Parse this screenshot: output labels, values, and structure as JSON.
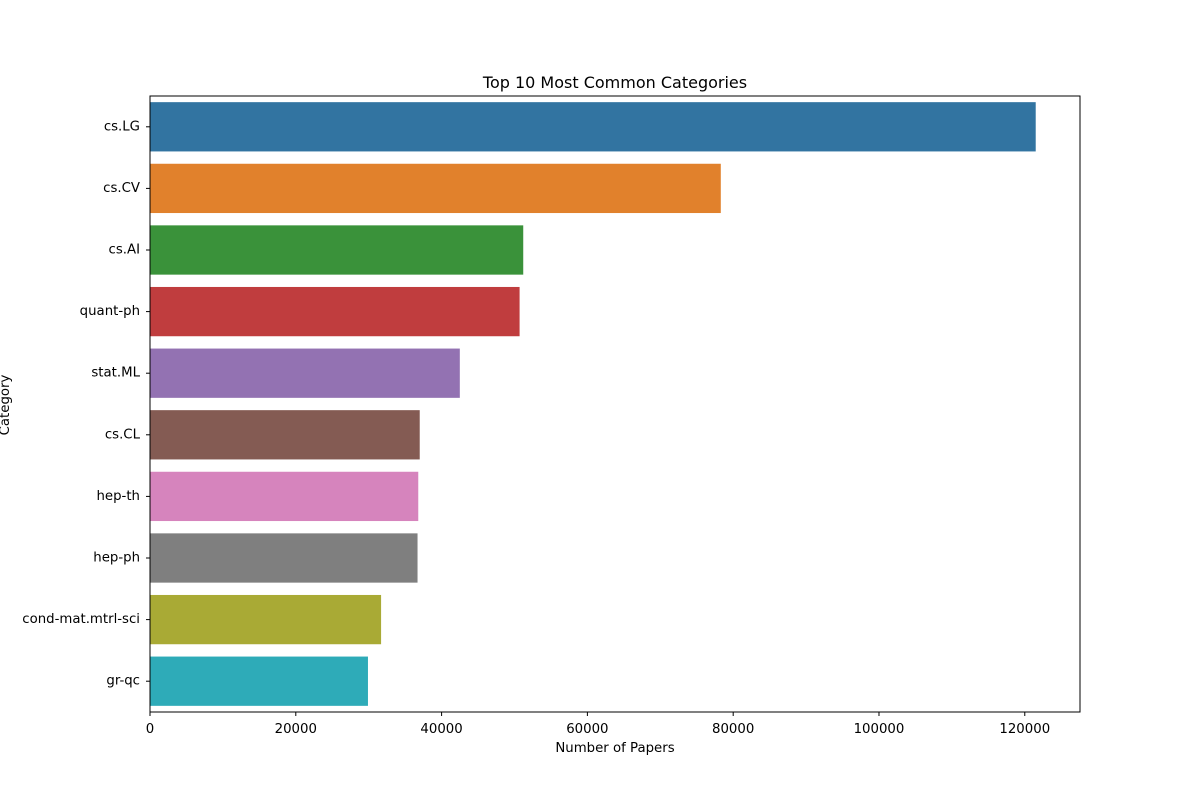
{
  "chart_data": {
    "type": "bar",
    "orientation": "horizontal",
    "title": "Top 10 Most Common Categories",
    "xlabel": "Number of Papers",
    "ylabel": "Category",
    "categories": [
      "cs.LG",
      "cs.CV",
      "cs.AI",
      "quant-ph",
      "stat.ML",
      "cs.CL",
      "hep-th",
      "hep-ph",
      "cond-mat.mtrl-sci",
      "gr-qc"
    ],
    "values": [
      121500,
      78300,
      51200,
      50700,
      42500,
      37000,
      36800,
      36700,
      31700,
      29900
    ],
    "colors": [
      "#3274a1",
      "#e1812c",
      "#3a923a",
      "#c03d3e",
      "#9372b2",
      "#845b53",
      "#d684bd",
      "#7f7f7f",
      "#a9aa35",
      "#2eabb8"
    ],
    "xticks": [
      0,
      20000,
      40000,
      60000,
      80000,
      100000,
      120000
    ],
    "xlim": [
      0,
      127575
    ],
    "grid": false,
    "legend": false
  }
}
